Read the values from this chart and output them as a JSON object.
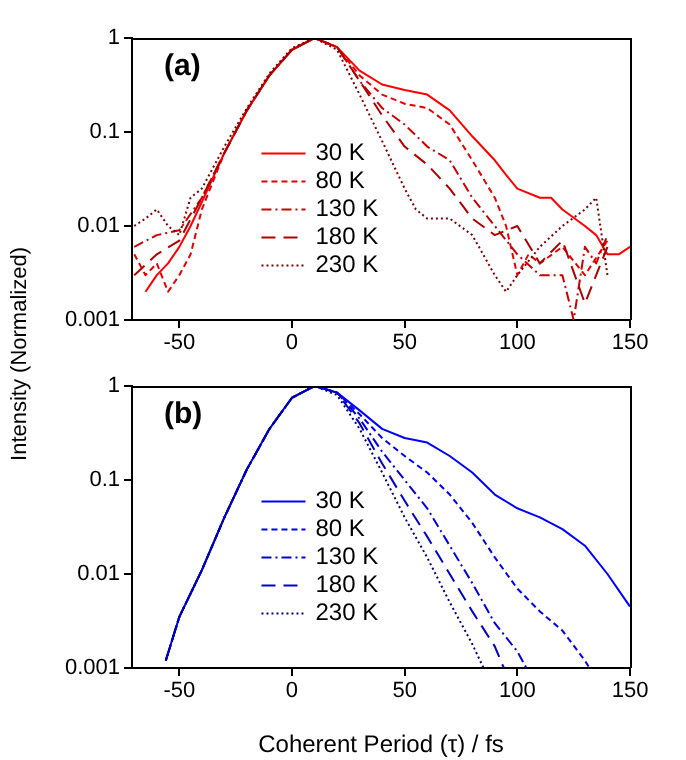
{
  "chart_data": [
    {
      "type": "line",
      "title": "(a)",
      "ylabel": "Intensity (Normalized)",
      "log": "y",
      "xlim": [
        -71,
        150
      ],
      "xticks": [
        -50,
        0,
        50,
        100,
        150
      ],
      "ylim": [
        0.001,
        1
      ],
      "yticks": [
        0.001,
        0.01,
        0.1,
        1
      ],
      "grid": false,
      "legend": "center",
      "marker": "none",
      "series": [
        {
          "name": "30 K",
          "color": "#ff0000",
          "line_style": "solid",
          "x": [
            -65,
            -60,
            -55,
            -50,
            -45,
            -40,
            -30,
            -20,
            -10,
            0,
            10,
            20,
            30,
            40,
            50,
            60,
            70,
            80,
            90,
            95,
            100,
            110,
            115,
            120,
            130,
            135,
            140,
            145,
            150
          ],
          "values": [
            0.002,
            0.003,
            0.004,
            0.006,
            0.01,
            0.018,
            0.06,
            0.17,
            0.4,
            0.75,
            1.0,
            0.8,
            0.45,
            0.32,
            0.28,
            0.25,
            0.17,
            0.09,
            0.05,
            0.035,
            0.025,
            0.02,
            0.02,
            0.015,
            0.01,
            0.008,
            0.005,
            0.005,
            0.006
          ]
        },
        {
          "name": "80 K",
          "color": "#e80000",
          "line_style": "dashed",
          "x": [
            -70,
            -65,
            -60,
            -55,
            -50,
            -45,
            -40,
            -30,
            -20,
            -10,
            0,
            10,
            20,
            30,
            40,
            50,
            60,
            70,
            80,
            90,
            95,
            100,
            105,
            110,
            120,
            130,
            140
          ],
          "values": [
            0.005,
            0.003,
            0.004,
            0.002,
            0.003,
            0.005,
            0.015,
            0.06,
            0.17,
            0.4,
            0.75,
            1.0,
            0.8,
            0.4,
            0.25,
            0.2,
            0.18,
            0.12,
            0.05,
            0.02,
            0.01,
            0.003,
            0.005,
            0.004,
            0.006,
            0.003,
            0.007
          ]
        },
        {
          "name": "130 K",
          "color": "#cc0000",
          "line_style": "dashdot",
          "x": [
            -70,
            -60,
            -50,
            -40,
            -30,
            -20,
            -10,
            0,
            10,
            20,
            30,
            40,
            50,
            60,
            70,
            80,
            90,
            100,
            110,
            120,
            125,
            130,
            135,
            140
          ],
          "values": [
            0.006,
            0.008,
            0.009,
            0.02,
            0.06,
            0.17,
            0.4,
            0.75,
            1.0,
            0.8,
            0.35,
            0.18,
            0.12,
            0.07,
            0.05,
            0.02,
            0.01,
            0.005,
            0.003,
            0.003,
            0.001,
            0.006,
            0.004,
            0.008
          ]
        },
        {
          "name": "180 K",
          "color": "#b00000",
          "line_style": "longdash",
          "x": [
            -70,
            -60,
            -50,
            -40,
            -30,
            -20,
            -10,
            0,
            10,
            20,
            30,
            40,
            50,
            60,
            70,
            80,
            90,
            100,
            110,
            120,
            130,
            140
          ],
          "values": [
            0.003,
            0.005,
            0.007,
            0.02,
            0.06,
            0.17,
            0.4,
            0.75,
            1.0,
            0.8,
            0.35,
            0.15,
            0.07,
            0.045,
            0.025,
            0.012,
            0.008,
            0.01,
            0.004,
            0.007,
            0.0015,
            0.006
          ]
        },
        {
          "name": "230 K",
          "color": "#800000",
          "line_style": "dotted",
          "x": [
            -70,
            -65,
            -60,
            -55,
            -50,
            -45,
            -40,
            -30,
            -20,
            -10,
            0,
            10,
            20,
            30,
            40,
            50,
            55,
            60,
            70,
            80,
            90,
            95,
            100,
            110,
            120,
            130,
            135,
            140
          ],
          "values": [
            0.01,
            0.012,
            0.015,
            0.01,
            0.008,
            0.02,
            0.025,
            0.07,
            0.18,
            0.42,
            0.78,
            1.0,
            0.75,
            0.25,
            0.08,
            0.025,
            0.015,
            0.012,
            0.012,
            0.008,
            0.003,
            0.002,
            0.003,
            0.006,
            0.01,
            0.015,
            0.02,
            0.003
          ]
        }
      ]
    },
    {
      "type": "line",
      "title": "(b)",
      "xlabel": "Coherent Period (τ) / fs",
      "log": "y",
      "xlim": [
        -71,
        150
      ],
      "xticks": [
        -50,
        0,
        50,
        100,
        150
      ],
      "ylim": [
        0.001,
        1
      ],
      "yticks": [
        0.001,
        0.01,
        0.1,
        1
      ],
      "grid": false,
      "legend": "center",
      "marker": "none",
      "series": [
        {
          "name": "30 K",
          "color": "#0000ff",
          "line_style": "solid",
          "x": [
            -56,
            -50,
            -40,
            -30,
            -20,
            -10,
            0,
            10,
            20,
            30,
            40,
            50,
            60,
            70,
            80,
            90,
            100,
            110,
            120,
            130,
            140,
            150
          ],
          "values": [
            0.0012,
            0.0035,
            0.011,
            0.04,
            0.13,
            0.35,
            0.75,
            1.0,
            0.85,
            0.55,
            0.35,
            0.28,
            0.25,
            0.18,
            0.12,
            0.07,
            0.05,
            0.04,
            0.03,
            0.02,
            0.01,
            0.0045
          ]
        },
        {
          "name": "80 K",
          "color": "#0000ee",
          "line_style": "dashed",
          "x": [
            -56,
            -50,
            -40,
            -30,
            -20,
            -10,
            0,
            10,
            20,
            30,
            40,
            50,
            60,
            70,
            80,
            90,
            100,
            110,
            120,
            130,
            132
          ],
          "values": [
            0.0012,
            0.0035,
            0.011,
            0.04,
            0.13,
            0.35,
            0.75,
            1.0,
            0.85,
            0.5,
            0.28,
            0.18,
            0.12,
            0.07,
            0.035,
            0.015,
            0.007,
            0.004,
            0.0025,
            0.0012,
            0.001
          ]
        },
        {
          "name": "130 K",
          "color": "#0000dd",
          "line_style": "dashdot",
          "x": [
            -56,
            -50,
            -40,
            -30,
            -20,
            -10,
            0,
            10,
            20,
            30,
            40,
            50,
            60,
            70,
            80,
            90,
            100,
            104
          ],
          "values": [
            0.0012,
            0.0035,
            0.011,
            0.04,
            0.13,
            0.35,
            0.75,
            1.0,
            0.85,
            0.45,
            0.2,
            0.1,
            0.05,
            0.02,
            0.008,
            0.003,
            0.0015,
            0.001
          ]
        },
        {
          "name": "180 K",
          "color": "#0000cc",
          "line_style": "longdash",
          "x": [
            -56,
            -50,
            -40,
            -30,
            -20,
            -10,
            0,
            10,
            20,
            30,
            40,
            50,
            60,
            70,
            80,
            90,
            94
          ],
          "values": [
            0.0012,
            0.0035,
            0.011,
            0.04,
            0.13,
            0.35,
            0.75,
            1.0,
            0.85,
            0.4,
            0.15,
            0.06,
            0.025,
            0.01,
            0.004,
            0.0017,
            0.001
          ]
        },
        {
          "name": "230 K",
          "color": "#000080",
          "line_style": "dotted",
          "x": [
            -56,
            -50,
            -40,
            -30,
            -20,
            -10,
            0,
            10,
            20,
            30,
            40,
            50,
            60,
            70,
            80,
            85
          ],
          "values": [
            0.0012,
            0.0035,
            0.011,
            0.04,
            0.13,
            0.35,
            0.75,
            1.0,
            0.8,
            0.35,
            0.12,
            0.04,
            0.015,
            0.005,
            0.0018,
            0.001
          ]
        }
      ]
    }
  ]
}
